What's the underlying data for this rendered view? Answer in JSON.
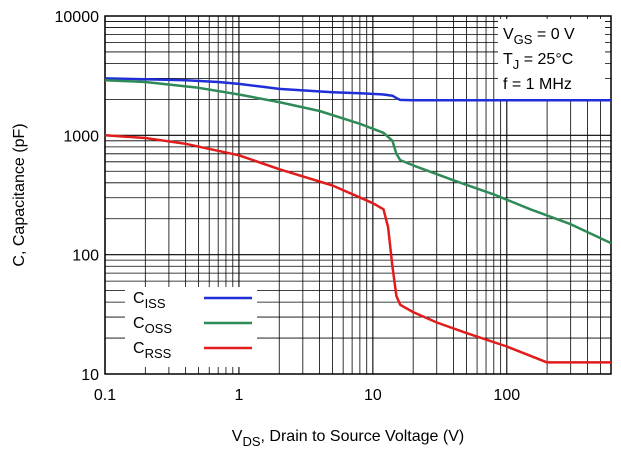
{
  "chart_data": {
    "type": "line",
    "xlabel": {
      "main": "V",
      "sub": "DS",
      "rest": ", Drain to Source Voltage (V)"
    },
    "ylabel": "C, Capacitance (pF)",
    "x_scale": "log",
    "y_scale": "log",
    "xlim": [
      0.1,
      600
    ],
    "ylim": [
      10,
      10000
    ],
    "grid": true,
    "x_ticks": [
      {
        "value": 0.1,
        "label": "0.1"
      },
      {
        "value": 1,
        "label": "1"
      },
      {
        "value": 10,
        "label": "10"
      },
      {
        "value": 100,
        "label": "100"
      }
    ],
    "y_ticks": [
      {
        "value": 10,
        "label": "10"
      },
      {
        "value": 100,
        "label": "100"
      },
      {
        "value": 1000,
        "label": "1000"
      },
      {
        "value": 10000,
        "label": "10000"
      }
    ],
    "annotations": [
      {
        "main": "V",
        "sub": "GS",
        "rest": " = 0 V"
      },
      {
        "main": "T",
        "sub": "J",
        "rest": " = 25°C"
      },
      {
        "main": "f = 1 MHz",
        "sub": "",
        "rest": ""
      }
    ],
    "legend_position": "bottom-left",
    "series": [
      {
        "name": {
          "main": "C",
          "sub": "ISS"
        },
        "color": "#1f2ed6",
        "x": [
          0.1,
          0.2,
          0.4,
          0.7,
          1,
          1.5,
          2,
          3,
          5,
          8,
          12,
          14,
          15,
          16,
          20,
          50,
          100,
          200,
          600
        ],
        "y": [
          3000,
          2950,
          2900,
          2800,
          2700,
          2550,
          2450,
          2380,
          2300,
          2250,
          2200,
          2150,
          2050,
          1980,
          1970,
          1970,
          1970,
          1970,
          1970
        ]
      },
      {
        "name": {
          "main": "C",
          "sub": "OSS"
        },
        "color": "#2e8b57",
        "x": [
          0.1,
          0.2,
          0.5,
          1,
          2,
          4,
          8,
          12,
          14,
          15,
          16,
          20,
          40,
          80,
          150,
          300,
          600
        ],
        "y": [
          2900,
          2800,
          2500,
          2200,
          1900,
          1600,
          1250,
          1050,
          900,
          700,
          620,
          560,
          420,
          320,
          240,
          180,
          125
        ]
      },
      {
        "name": {
          "main": "C",
          "sub": "RSS"
        },
        "color": "#e01c1c",
        "x": [
          0.1,
          0.2,
          0.4,
          1,
          2,
          5,
          10,
          12,
          13,
          14,
          15,
          16,
          20,
          30,
          50,
          100,
          200,
          300,
          600
        ],
        "y": [
          1000,
          950,
          850,
          680,
          520,
          380,
          270,
          240,
          170,
          80,
          45,
          38,
          33,
          27,
          22,
          17,
          12.5,
          12.5,
          12.5
        ]
      }
    ]
  }
}
